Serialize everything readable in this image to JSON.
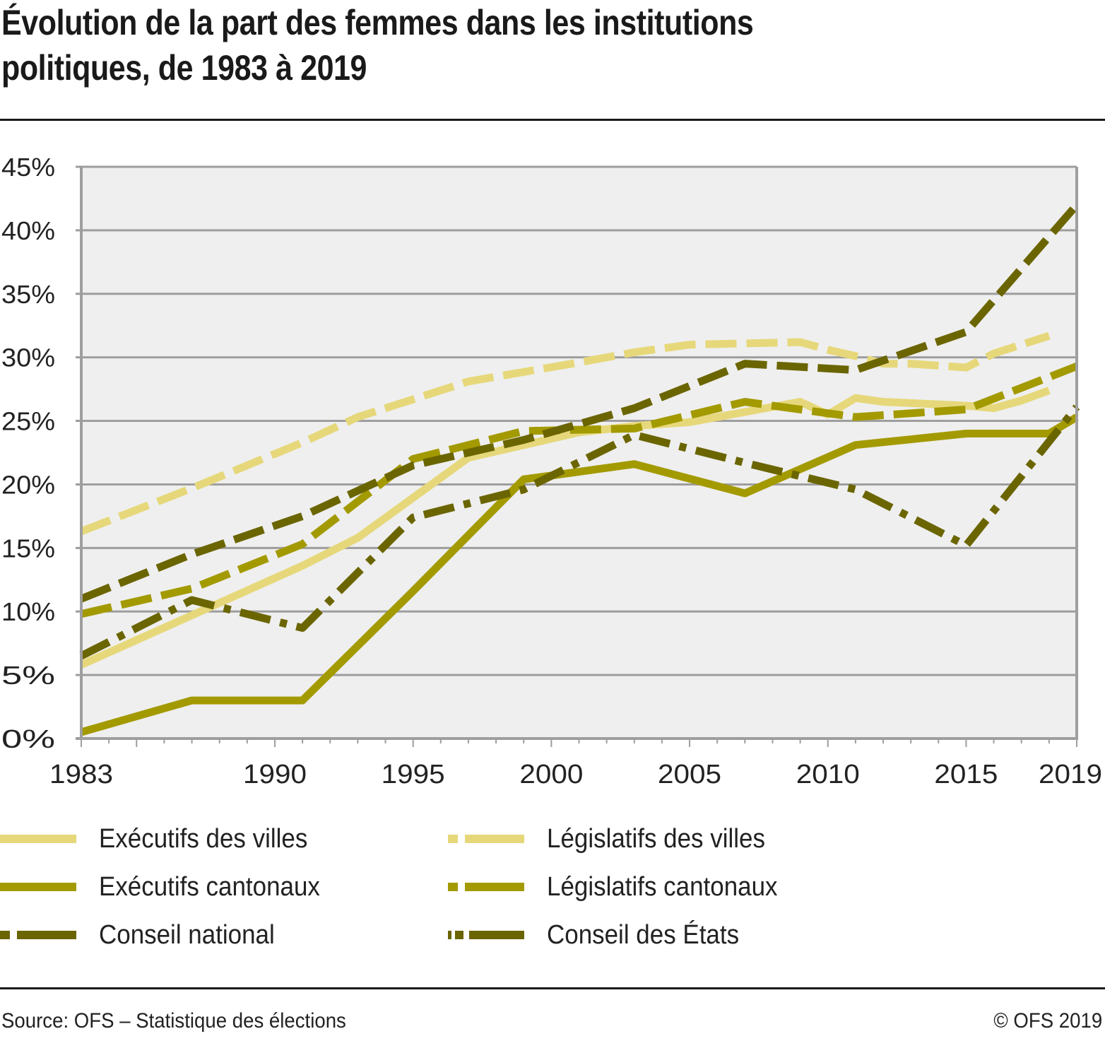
{
  "header": {
    "title_line1": "Évolution de la part des femmes dans les institutions",
    "title_line2": "politiques, de 1983 à 2019"
  },
  "footer": {
    "source": "Source: OFS – Statistique des élections",
    "copyright": "© OFS 2019"
  },
  "chart_data": {
    "type": "line",
    "title": "Évolution de la part des femmes dans les institutions politiques, de 1983 à 2019",
    "xlabel": "",
    "ylabel": "",
    "xlim": [
      1983,
      2019
    ],
    "ylim": [
      0,
      45
    ],
    "x_ticks": [
      "1983",
      "1990",
      "1995",
      "2000",
      "2005",
      "2010",
      "2015",
      "2019"
    ],
    "y_ticks": [
      "0%",
      "5%",
      "10%",
      "15%",
      "20%",
      "25%",
      "30%",
      "35%",
      "40%",
      "45%"
    ],
    "grid": true,
    "legend_position": "bottom",
    "series": [
      {
        "name": "Exécutifs des villes",
        "color": "#e6d87a",
        "style": "solid",
        "x": [
          1983,
          1987,
          1991,
          1993,
          1997,
          1999,
          2001,
          2003,
          2005,
          2007,
          2009,
          2010,
          2011,
          2012,
          2015,
          2016,
          2017,
          2018
        ],
        "values": [
          5.8,
          9.7,
          13.6,
          15.8,
          22.1,
          23.1,
          24.1,
          24.6,
          24.9,
          25.7,
          26.5,
          25.5,
          26.8,
          26.5,
          26.2,
          26.0,
          26.6,
          27.4
        ]
      },
      {
        "name": "Législatifs des villes",
        "color": "#e6d87a",
        "style": "dashed",
        "x": [
          1983,
          1987,
          1991,
          1993,
          1997,
          2001,
          2003,
          2005,
          2007,
          2009,
          2010,
          2011,
          2012,
          2013,
          2015,
          2016,
          2017,
          2018
        ],
        "values": [
          16.3,
          19.7,
          23.3,
          25.3,
          28.1,
          29.6,
          30.4,
          31.0,
          31.1,
          31.2,
          30.6,
          30.1,
          29.5,
          29.5,
          29.2,
          30.3,
          31.0,
          31.7
        ]
      },
      {
        "name": "Exécutifs cantonaux",
        "color": "#a39a00",
        "style": "solid",
        "x": [
          1983,
          1987,
          1991,
          1995,
          1999,
          2003,
          2007,
          2011,
          2015,
          2018,
          2019
        ],
        "values": [
          0.5,
          3.0,
          3.0,
          11.6,
          20.4,
          21.6,
          19.3,
          23.1,
          24.0,
          24.0,
          25.3
        ]
      },
      {
        "name": "Législatifs cantonaux",
        "color": "#a39a00",
        "style": "dashed",
        "x": [
          1983,
          1987,
          1991,
          1995,
          1999,
          2003,
          2007,
          2011,
          2015,
          2019
        ],
        "values": [
          9.8,
          11.8,
          15.3,
          22.0,
          24.2,
          24.4,
          26.5,
          25.3,
          25.9,
          29.3
        ]
      },
      {
        "name": "Conseil national",
        "color": "#6b6500",
        "style": "dashed",
        "x": [
          1983,
          1987,
          1991,
          1995,
          1999,
          2003,
          2007,
          2011,
          2015,
          2019
        ],
        "values": [
          11.0,
          14.5,
          17.5,
          21.5,
          23.5,
          26.0,
          29.5,
          29.0,
          32.0,
          42.0
        ]
      },
      {
        "name": "Conseil des États",
        "color": "#6b6500",
        "style": "dashdot",
        "x": [
          1983,
          1987,
          1991,
          1995,
          1999,
          2003,
          2007,
          2011,
          2015,
          2019
        ],
        "values": [
          6.5,
          10.9,
          8.7,
          17.4,
          19.6,
          23.9,
          21.7,
          19.6,
          15.2,
          26.1
        ]
      }
    ]
  }
}
